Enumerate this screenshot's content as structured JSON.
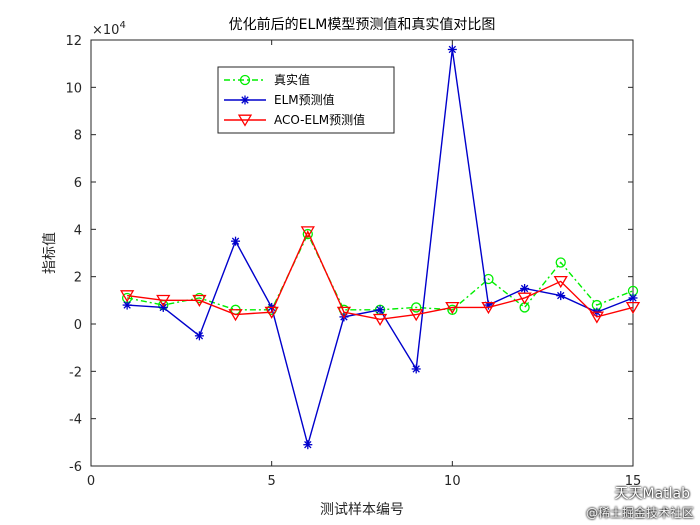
{
  "chart_data": {
    "type": "line",
    "title": "优化前后的ELM模型预测值和真实值对比图",
    "xlabel": "测试样本编号",
    "ylabel": "指标值",
    "y_exponent_label": "×10",
    "y_exponent_power": "4",
    "xlim": [
      0,
      15
    ],
    "ylim": [
      -6,
      12
    ],
    "xticks": [
      0,
      5,
      10,
      15
    ],
    "yticks": [
      -6,
      -4,
      -2,
      0,
      2,
      4,
      6,
      8,
      10,
      12
    ],
    "x": [
      1,
      2,
      3,
      4,
      5,
      6,
      7,
      8,
      9,
      10,
      11,
      12,
      13,
      14,
      15
    ],
    "legend_position": "top-left",
    "series": [
      {
        "name": "真实值",
        "color": "#00ee00",
        "dash": "6,3,2,3",
        "marker": "circle",
        "values": [
          1.1,
          0.8,
          1.1,
          0.6,
          0.6,
          3.8,
          0.6,
          0.6,
          0.7,
          0.6,
          1.9,
          0.7,
          2.6,
          0.8,
          1.4
        ]
      },
      {
        "name": "ELM预测值",
        "color": "#0000cc",
        "dash": "",
        "marker": "star",
        "values": [
          0.8,
          0.7,
          -0.5,
          3.5,
          0.7,
          -5.1,
          0.3,
          0.6,
          -1.9,
          11.6,
          0.8,
          1.5,
          1.2,
          0.5,
          1.1
        ]
      },
      {
        "name": "ACO-ELM预测值",
        "color": "#ff0000",
        "dash": "",
        "marker": "triangle-down",
        "values": [
          1.2,
          1.0,
          1.0,
          0.4,
          0.5,
          3.9,
          0.5,
          0.2,
          0.4,
          0.7,
          0.7,
          1.1,
          1.8,
          0.3,
          0.7
        ]
      }
    ]
  },
  "watermark": {
    "line1": "天天Matlab",
    "line2": "@稀土掘金技术社区"
  }
}
